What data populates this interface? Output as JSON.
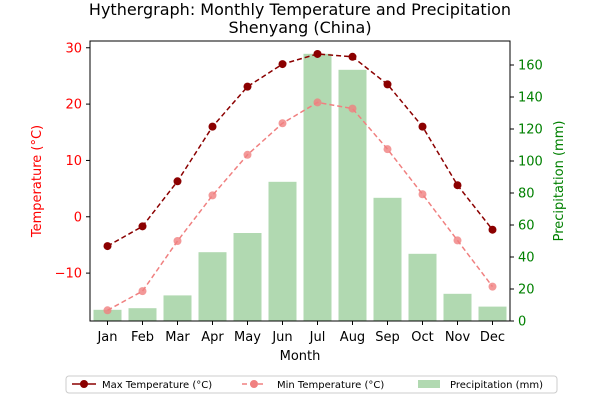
{
  "chart_data": {
    "type": "line",
    "title": "Hythergraph: Monthly Temperature and Precipitation",
    "subtitle": "Shenyang (China)",
    "xlabel": "Month",
    "ylabel_left": "Temperature (°C)",
    "ylabel_right": "Precipitation (mm)",
    "categories": [
      "Jan",
      "Feb",
      "Mar",
      "Apr",
      "May",
      "Jun",
      "Jul",
      "Aug",
      "Sep",
      "Oct",
      "Nov",
      "Dec"
    ],
    "ylim_left": [
      -18.5,
      31.2
    ],
    "ylim_right": [
      0,
      175
    ],
    "yticks_left": [
      -10,
      0,
      10,
      20,
      30
    ],
    "yticks_right": [
      0,
      20,
      40,
      60,
      80,
      100,
      120,
      140,
      160
    ],
    "grid": false,
    "legend_position": "bottom",
    "series": [
      {
        "name": "Max Temperature (°C)",
        "type": "line",
        "axis": "left",
        "color": "#8b0000",
        "values": [
          -5.2,
          -1.7,
          6.3,
          16.0,
          23.1,
          27.1,
          28.9,
          28.4,
          23.5,
          16.0,
          5.6,
          -2.3
        ]
      },
      {
        "name": "Min Temperature (°C)",
        "type": "line",
        "axis": "left",
        "color": "#f08080",
        "values": [
          -16.6,
          -13.2,
          -4.3,
          3.8,
          11.0,
          16.6,
          20.3,
          19.2,
          12.0,
          4.0,
          -4.2,
          -12.4
        ]
      },
      {
        "name": "Precipitation (mm)",
        "type": "bar",
        "axis": "right",
        "color": "#b1d9b1",
        "values": [
          7,
          8,
          16,
          43,
          55,
          87,
          167,
          157,
          77,
          42,
          17,
          9
        ]
      }
    ],
    "colors": {
      "left_axis": "#ff0000",
      "right_axis": "#008000"
    }
  }
}
